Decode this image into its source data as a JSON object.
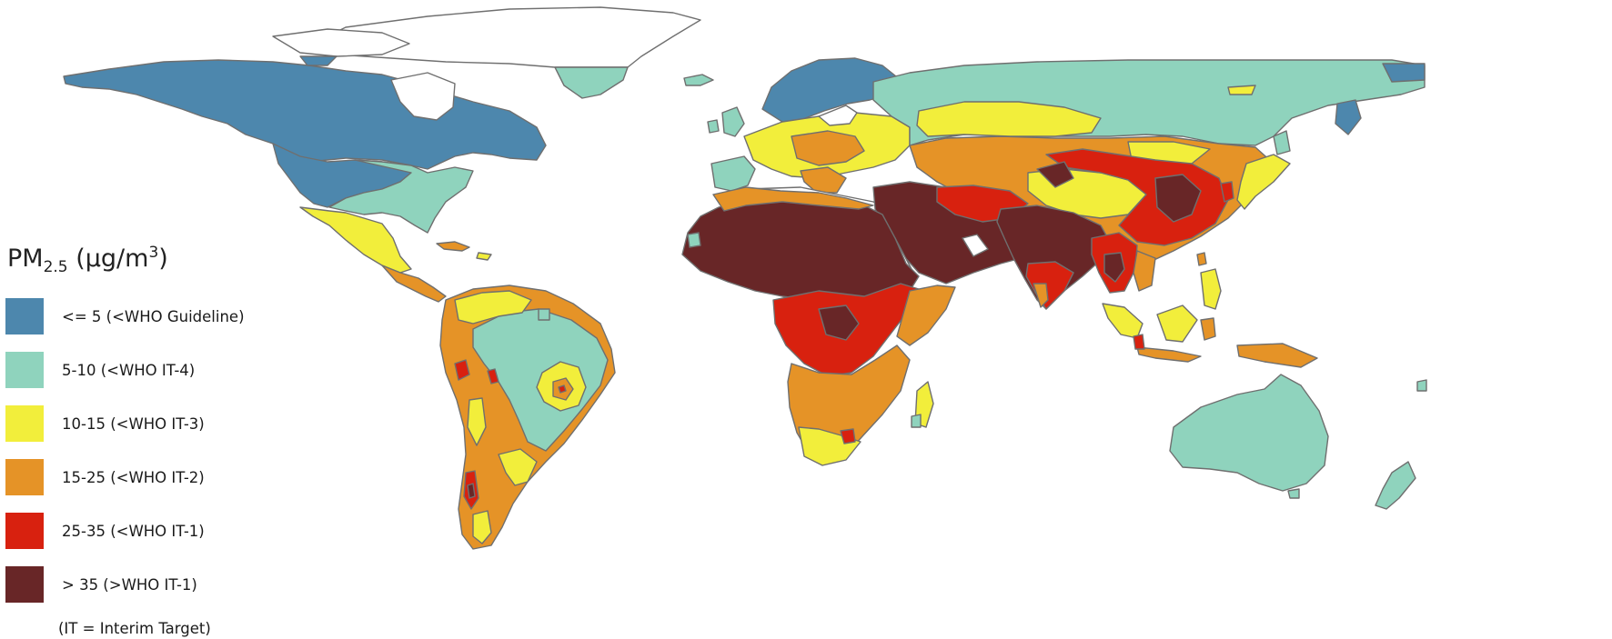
{
  "legend": {
    "title_main": "PM",
    "title_sub": "2.5",
    "title_unit_open": " (µg/m",
    "title_sup": "3",
    "title_unit_close": ")",
    "items": [
      {
        "label": "<= 5 (<WHO Guideline)",
        "color": "#4d87ad"
      },
      {
        "label": "5-10 (<WHO IT-4)",
        "color": "#8fd3bd"
      },
      {
        "label": "10-15 (<WHO IT-3)",
        "color": "#f2ee3b"
      },
      {
        "label": "15-25 (<WHO IT-2)",
        "color": "#e59327"
      },
      {
        "label": "25-35 (<WHO IT-1)",
        "color": "#d8210f"
      },
      {
        "label": "> 35 (>WHO IT-1)",
        "color": "#682627"
      }
    ],
    "note": "(IT = Interim Target)"
  },
  "colors": {
    "ocean": "#ffffff",
    "border": "#6f6f6f",
    "no_data": "#ffffff"
  }
}
